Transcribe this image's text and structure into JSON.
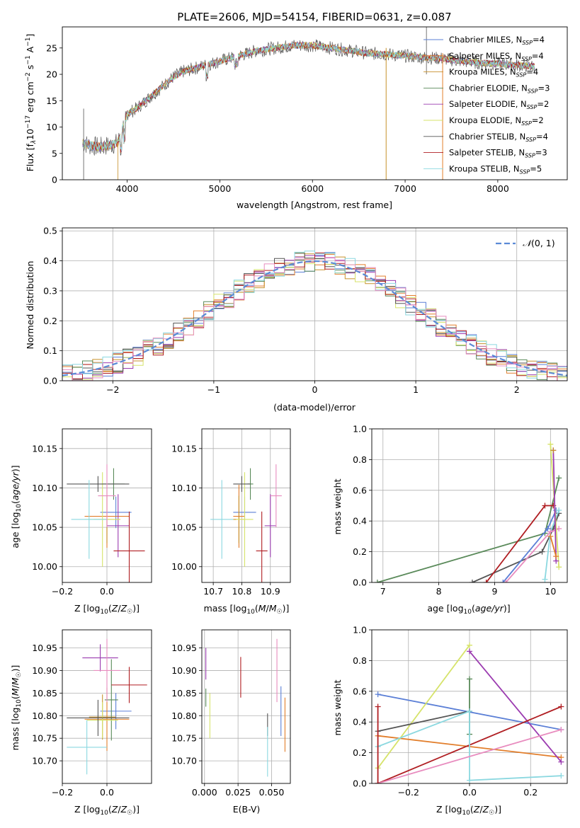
{
  "figure_title": "PLATE=2606, MJD=54154, FIBERID=0631, z=0.087",
  "colors": {
    "chabrier_miles": "#5b7fd6",
    "salpeter_miles": "#e27e2b",
    "kroupa_miles": "#c7912b",
    "chabrier_elodie": "#5a8a5a",
    "salpeter_elodie": "#9b3bb0",
    "kroupa_elodie": "#d6e36a",
    "chabrier_stelib": "#555555",
    "salpeter_stelib": "#b01e22",
    "kroupa_stelib": "#8bd8e0",
    "pink": "#e88cbf",
    "normal_curve": "#5b8ad6"
  },
  "chart_data": [
    {
      "id": "spectrum",
      "type": "line",
      "title": "PLATE=2606, MJD=54154, FIBERID=0631, z=0.087",
      "xlabel": "wavelength [Angstrom, rest frame]",
      "ylabel": "Flux [f_λ 10^-17 erg cm^-2 s^-1 A^-1]",
      "xlim": [
        3300,
        8750
      ],
      "ylim": [
        0,
        29
      ],
      "xticks": [
        4000,
        5000,
        6000,
        7000,
        8000
      ],
      "yticks": [
        0,
        5,
        10,
        15,
        20,
        25
      ],
      "legend": "right",
      "grid": false,
      "series_names": [
        "Chabrier MILES, N_SSP=4",
        "Salpeter MILES, N_SSP=4",
        "Kroupa MILES, N_SSP=4",
        "Chabrier ELODIE, N_SSP=3",
        "Salpeter ELODIE, N_SSP=2",
        "Kroupa ELODIE, N_SSP=2",
        "Chabrier STELIB, N_SSP=4",
        "Salpeter STELIB, N_SSP=3",
        "Kroupa STELIB, N_SSP=5"
      ],
      "continuum": {
        "x": [
          3520,
          3600,
          3700,
          3800,
          3900,
          4000,
          4100,
          4200,
          4300,
          4400,
          4500,
          4600,
          4700,
          4800,
          4900,
          5000,
          5200,
          5400,
          5600,
          5800,
          6000,
          6200,
          6400,
          6600,
          6800,
          7000,
          7200,
          7400,
          7600,
          7800,
          8000,
          8200,
          8400
        ],
        "y": [
          7.0,
          6.5,
          6.2,
          6.5,
          7.0,
          12.5,
          13.5,
          15.0,
          16.5,
          18.0,
          19.5,
          20.5,
          21.0,
          21.5,
          22.0,
          22.5,
          23.5,
          24.5,
          25.0,
          25.5,
          25.5,
          25.0,
          24.5,
          24.0,
          23.8,
          23.5,
          23.2,
          23.0,
          22.5,
          22.2,
          22.0,
          21.8,
          21.5
        ]
      }
    },
    {
      "id": "residuals",
      "type": "histogram",
      "xlabel": "(data-model)/error",
      "ylabel": "Normed distribution",
      "xlim": [
        -2.5,
        2.5
      ],
      "ylim": [
        0,
        0.51
      ],
      "xticks": [
        -2,
        -1,
        0,
        1,
        2
      ],
      "yticks": [
        0.0,
        0.1,
        0.2,
        0.3,
        0.4,
        0.5
      ],
      "grid": true,
      "legend": "top-right",
      "legend_label": "N(0,1)"
    },
    {
      "id": "age_vs_Z",
      "type": "scatter",
      "xlabel": "Z [log10(Z/Z☉)]",
      "ylabel": "age [log10(age/yr)]",
      "xlim": [
        -0.2,
        0.2
      ],
      "ylim": [
        9.98,
        10.175
      ],
      "xticks": [
        -0.2,
        0.0
      ],
      "yticks": [
        10.0,
        10.05,
        10.1,
        10.15
      ],
      "grid": true,
      "points": [
        {
          "x": 0.04,
          "y": 10.069,
          "xerr": 0.07,
          "yerr": 0.02,
          "c": "chabrier_miles"
        },
        {
          "x": 0.0,
          "y": 10.064,
          "xerr": 0.1,
          "yerr": 0.04,
          "c": "salpeter_miles"
        },
        {
          "x": 0.0,
          "y": 10.06,
          "xerr": 0.06,
          "yerr": 0.03,
          "c": "kroupa_miles"
        },
        {
          "x": 0.03,
          "y": 10.105,
          "xerr": 0.05,
          "yerr": 0.02,
          "c": "chabrier_elodie"
        },
        {
          "x": 0.05,
          "y": 10.052,
          "xerr": 0.05,
          "yerr": 0.04,
          "c": "salpeter_elodie"
        },
        {
          "x": -0.02,
          "y": 10.06,
          "xerr": 0.08,
          "yerr": 0.06,
          "c": "kroupa_elodie"
        },
        {
          "x": -0.04,
          "y": 10.105,
          "xerr": 0.14,
          "yerr": 0.01,
          "c": "chabrier_stelib"
        },
        {
          "x": 0.1,
          "y": 10.02,
          "xerr": 0.07,
          "yerr": 0.05,
          "c": "salpeter_stelib"
        },
        {
          "x": -0.08,
          "y": 10.06,
          "xerr": 0.08,
          "yerr": 0.05,
          "c": "kroupa_stelib"
        },
        {
          "x": 0.0,
          "y": 10.09,
          "xerr": 0.04,
          "yerr": 0.04,
          "c": "pink"
        }
      ]
    },
    {
      "id": "age_vs_mass",
      "type": "scatter",
      "xlabel": "mass [log10(M/M☉)]",
      "xlim": [
        10.66,
        10.97
      ],
      "ylim": [
        9.98,
        10.175
      ],
      "xticks": [
        10.7,
        10.8,
        10.9
      ],
      "yticks": [
        10.0,
        10.05,
        10.1,
        10.15
      ],
      "grid": true,
      "points": [
        {
          "x": 10.81,
          "y": 10.069,
          "xerr": 0.04,
          "yerr": 0.02,
          "c": "chabrier_miles"
        },
        {
          "x": 10.79,
          "y": 10.064,
          "xerr": 0.02,
          "yerr": 0.04,
          "c": "salpeter_miles"
        },
        {
          "x": 10.79,
          "y": 10.06,
          "xerr": 0.02,
          "yerr": 0.03,
          "c": "kroupa_miles"
        },
        {
          "x": 10.83,
          "y": 10.105,
          "xerr": 0.01,
          "yerr": 0.02,
          "c": "chabrier_elodie"
        },
        {
          "x": 10.9,
          "y": 10.052,
          "xerr": 0.02,
          "yerr": 0.04,
          "c": "salpeter_elodie"
        },
        {
          "x": 10.81,
          "y": 10.06,
          "xerr": 0.03,
          "yerr": 0.06,
          "c": "kroupa_elodie"
        },
        {
          "x": 10.8,
          "y": 10.105,
          "xerr": 0.03,
          "yerr": 0.01,
          "c": "chabrier_stelib"
        },
        {
          "x": 10.87,
          "y": 10.02,
          "xerr": 0.02,
          "yerr": 0.05,
          "c": "salpeter_stelib"
        },
        {
          "x": 10.73,
          "y": 10.06,
          "xerr": 0.04,
          "yerr": 0.05,
          "c": "kroupa_stelib"
        },
        {
          "x": 10.92,
          "y": 10.09,
          "xerr": 0.02,
          "yerr": 0.04,
          "c": "pink"
        }
      ]
    },
    {
      "id": "weight_vs_age",
      "type": "line",
      "xlabel": "age [log10(age/yr)]",
      "ylabel": "mass weight",
      "xlim": [
        6.8,
        10.3
      ],
      "ylim": [
        0,
        1.0
      ],
      "xticks": [
        7,
        8,
        9,
        10
      ],
      "yticks": [
        0.0,
        0.2,
        0.4,
        0.6,
        0.8,
        1.0
      ],
      "grid": true,
      "series": [
        {
          "c": "chabrier_elodie",
          "x": [
            6.9,
            9.9,
            10.15
          ],
          "y": [
            0.0,
            0.32,
            0.68
          ]
        },
        {
          "c": "chabrier_stelib",
          "x": [
            8.6,
            9.85,
            10.05,
            10.15
          ],
          "y": [
            0.0,
            0.2,
            0.35,
            0.45
          ]
        },
        {
          "c": "salpeter_stelib",
          "x": [
            8.85,
            9.9,
            10.05
          ],
          "y": [
            0.0,
            0.5,
            0.5
          ]
        },
        {
          "c": "chabrier_miles",
          "x": [
            9.15,
            9.95,
            10.1
          ],
          "y": [
            0.0,
            0.35,
            0.47
          ]
        },
        {
          "c": "kroupa_stelib",
          "x": [
            9.9,
            10.0,
            10.15
          ],
          "y": [
            0.02,
            0.33,
            0.47
          ]
        },
        {
          "c": "pink",
          "x": [
            9.2,
            10.0,
            10.15
          ],
          "y": [
            0.0,
            0.33,
            0.35
          ]
        },
        {
          "c": "kroupa_elodie",
          "x": [
            10.0,
            10.15
          ],
          "y": [
            0.9,
            0.1
          ]
        },
        {
          "c": "salpeter_elodie",
          "x": [
            10.05,
            10.1
          ],
          "y": [
            0.86,
            0.14
          ]
        },
        {
          "c": "salpeter_miles",
          "x": [
            10.0,
            10.1
          ],
          "y": [
            0.3,
            0.17
          ]
        },
        {
          "c": "kroupa_miles",
          "x": [
            10.05
          ],
          "y": [
            0.86
          ]
        }
      ]
    },
    {
      "id": "mass_vs_Z",
      "type": "scatter",
      "xlabel": "Z [log10(Z/Z☉)]",
      "ylabel": "mass [log10(M/M☉)]",
      "xlim": [
        -0.2,
        0.2
      ],
      "ylim": [
        10.65,
        10.99
      ],
      "xticks": [
        -0.2,
        0.0
      ],
      "yticks": [
        10.7,
        10.75,
        10.8,
        10.85,
        10.9,
        10.95
      ],
      "grid": true,
      "points": [
        {
          "x": 0.04,
          "y": 10.81,
          "xerr": 0.07,
          "yerr": 0.04,
          "c": "chabrier_miles"
        },
        {
          "x": 0.0,
          "y": 10.792,
          "xerr": 0.1,
          "yerr": 0.07,
          "c": "salpeter_miles"
        },
        {
          "x": -0.02,
          "y": 10.797,
          "xerr": 0.06,
          "yerr": 0.05,
          "c": "kroupa_miles"
        },
        {
          "x": 0.02,
          "y": 10.835,
          "xerr": 0.03,
          "yerr": 0.09,
          "c": "chabrier_elodie"
        },
        {
          "x": -0.03,
          "y": 10.928,
          "xerr": 0.08,
          "yerr": 0.03,
          "c": "salpeter_elodie"
        },
        {
          "x": -0.02,
          "y": 10.79,
          "xerr": 0.07,
          "yerr": 0.04,
          "c": "kroupa_elodie"
        },
        {
          "x": -0.04,
          "y": 10.795,
          "xerr": 0.14,
          "yerr": 0.04,
          "c": "chabrier_stelib"
        },
        {
          "x": 0.1,
          "y": 10.868,
          "xerr": 0.08,
          "yerr": 0.04,
          "c": "salpeter_stelib"
        },
        {
          "x": -0.09,
          "y": 10.73,
          "xerr": 0.09,
          "yerr": 0.06,
          "c": "kroupa_stelib"
        },
        {
          "x": 0.0,
          "y": 10.9,
          "xerr": 0.06,
          "yerr": 0.07,
          "c": "pink"
        }
      ]
    },
    {
      "id": "mass_vs_ebv",
      "type": "scatter",
      "xlabel": "E(B-V)",
      "xlim": [
        -0.002,
        0.064
      ],
      "ylim": [
        10.65,
        10.99
      ],
      "xticks": [
        0.0,
        0.025,
        0.05
      ],
      "xticklabels": [
        "0.000",
        "0.025",
        "0.050"
      ],
      "yticks": [
        10.7,
        10.75,
        10.8,
        10.85,
        10.9,
        10.95
      ],
      "grid": true,
      "points": [
        {
          "x": 0.057,
          "y": 10.81,
          "xerr": 0.0,
          "yerr": 0.055,
          "c": "chabrier_miles"
        },
        {
          "x": 0.06,
          "y": 10.78,
          "xerr": 0.0,
          "yerr": 0.06,
          "c": "salpeter_miles"
        },
        {
          "x": 0.001,
          "y": 10.84,
          "xerr": 0.0,
          "yerr": 0.02,
          "c": "chabrier_elodie"
        },
        {
          "x": 0.001,
          "y": 10.915,
          "xerr": 0.0,
          "yerr": 0.035,
          "c": "salpeter_elodie"
        },
        {
          "x": 0.004,
          "y": 10.8,
          "xerr": 0.0,
          "yerr": 0.05,
          "c": "kroupa_elodie"
        },
        {
          "x": 0.047,
          "y": 10.78,
          "xerr": 0.0,
          "yerr": 0.025,
          "c": "chabrier_stelib"
        },
        {
          "x": 0.027,
          "y": 10.885,
          "xerr": 0.0,
          "yerr": 0.045,
          "c": "salpeter_stelib"
        },
        {
          "x": 0.047,
          "y": 10.72,
          "xerr": 0.0,
          "yerr": 0.055,
          "c": "kroupa_stelib"
        },
        {
          "x": 0.054,
          "y": 10.9,
          "xerr": 0.0,
          "yerr": 0.07,
          "c": "pink"
        }
      ]
    },
    {
      "id": "weight_vs_Z",
      "type": "line",
      "xlabel": "Z [log10(Z/Z☉)]",
      "ylabel": "mass weight",
      "xlim": [
        -0.32,
        0.32
      ],
      "ylim": [
        0,
        1.0
      ],
      "xticks": [
        -0.2,
        0.0,
        0.2
      ],
      "yticks": [
        0.0,
        0.2,
        0.4,
        0.6,
        0.8,
        1.0
      ],
      "grid": true,
      "series": [
        {
          "c": "chabrier_miles",
          "x": [
            -0.3,
            0.3
          ],
          "y": [
            0.58,
            0.35
          ]
        },
        {
          "c": "salpeter_miles",
          "x": [
            -0.3,
            0.3
          ],
          "y": [
            0.31,
            0.17
          ]
        },
        {
          "c": "kroupa_elodie",
          "x": [
            -0.3,
            0.0
          ],
          "y": [
            0.1,
            0.9
          ]
        },
        {
          "c": "salpeter_elodie",
          "x": [
            0.0,
            0.3
          ],
          "y": [
            0.86,
            0.14
          ]
        },
        {
          "c": "chabrier_elodie",
          "x": [
            0.0,
            0.0
          ],
          "y": [
            0.32,
            0.68
          ]
        },
        {
          "c": "chabrier_stelib",
          "x": [
            -0.3,
            0.0
          ],
          "y": [
            0.34,
            0.47
          ]
        },
        {
          "c": "salpeter_stelib",
          "x": [
            -0.3,
            0.3
          ],
          "y": [
            0.0,
            0.5
          ]
        },
        {
          "c": "kroupa_stelib",
          "x": [
            -0.3,
            0.0,
            0.0,
            0.3
          ],
          "y": [
            0.24,
            0.47,
            0.02,
            0.05
          ]
        },
        {
          "c": "pink",
          "x": [
            -0.3,
            0.3
          ],
          "y": [
            0.0,
            0.35
          ]
        },
        {
          "c": "salpeter_stelib",
          "x": [
            -0.3,
            -0.3
          ],
          "y": [
            0.0,
            0.5
          ]
        }
      ]
    }
  ]
}
